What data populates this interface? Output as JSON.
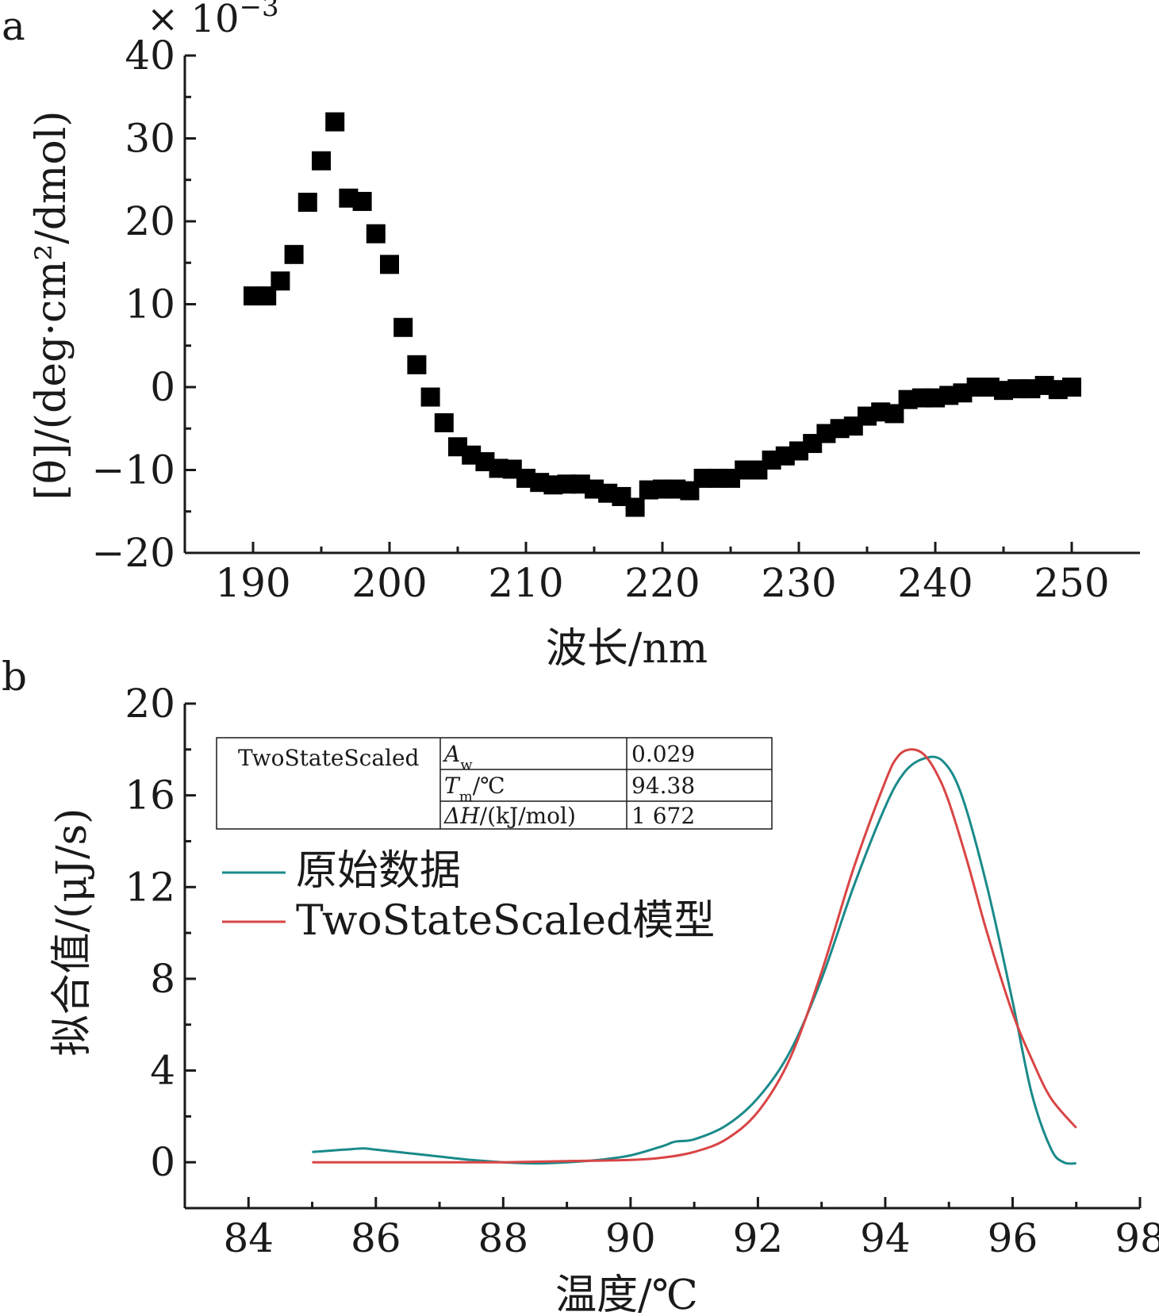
{
  "panels": [
    {
      "letter": "a",
      "multiplier_label": "× 10",
      "multiplier_exp": "−3",
      "chart_data": {
        "type": "scatter",
        "xlabel": "波长/nm",
        "ylabel": "[θ]/(deg·cm²/dmol)",
        "xlim": [
          185,
          255
        ],
        "ylim": [
          -20,
          40
        ],
        "xticks": [
          190,
          200,
          210,
          220,
          230,
          240,
          250
        ],
        "xtick_labels": [
          "190",
          "200",
          "210",
          "220",
          "230",
          "240",
          "250"
        ],
        "yticks": [
          -20,
          -10,
          0,
          10,
          20,
          30,
          40
        ],
        "ytick_labels": [
          "−20",
          "−10",
          "0",
          "10",
          "20",
          "30",
          "40"
        ],
        "marker": "square",
        "color": "#000000",
        "series": [
          {
            "x": [
              190,
              191,
              192,
              193,
              194,
              195,
              196,
              197,
              198,
              199,
              200,
              201,
              202,
              203,
              204,
              205,
              206,
              207,
              208,
              209,
              210,
              211,
              212,
              213,
              214,
              215,
              216,
              217,
              218,
              219,
              220,
              221,
              222,
              223,
              224,
              225,
              226,
              227,
              228,
              229,
              230,
              231,
              232,
              233,
              234,
              235,
              236,
              237,
              238,
              239,
              240,
              241,
              242,
              243,
              244,
              245,
              246,
              247,
              248,
              249,
              250
            ],
            "y": [
              11.0,
              11.0,
              12.8,
              16.0,
              22.3,
              27.3,
              32.0,
              22.8,
              22.4,
              18.5,
              14.8,
              7.2,
              2.7,
              -1.2,
              -4.3,
              -7.2,
              -8.2,
              -9.0,
              -9.8,
              -9.9,
              -11.0,
              -11.5,
              -11.8,
              -11.7,
              -11.7,
              -12.3,
              -12.8,
              -13.2,
              -14.5,
              -12.4,
              -12.3,
              -12.3,
              -12.5,
              -11.0,
              -11.0,
              -11.0,
              -10.0,
              -10.0,
              -8.8,
              -8.3,
              -7.7,
              -6.8,
              -5.6,
              -5.0,
              -4.7,
              -3.5,
              -3.0,
              -3.2,
              -1.5,
              -1.3,
              -1.3,
              -1.0,
              -0.7,
              0.0,
              0.0,
              -0.4,
              -0.2,
              -0.2,
              0.2,
              -0.3,
              0.0
            ]
          }
        ]
      }
    },
    {
      "letter": "b",
      "chart_data": {
        "type": "line",
        "xlabel": "温度/℃",
        "ylabel": "拟合值/(μJ/s)",
        "xlim": [
          83,
          98
        ],
        "ylim": [
          -2,
          20
        ],
        "xticks": [
          84,
          86,
          88,
          90,
          92,
          94,
          96,
          98
        ],
        "xtick_labels": [
          "84",
          "86",
          "88",
          "90",
          "92",
          "94",
          "96",
          "98"
        ],
        "yticks": [
          0,
          4,
          8,
          12,
          16,
          20
        ],
        "ytick_labels": [
          "0",
          "4",
          "8",
          "12",
          "16",
          "20"
        ],
        "series": [
          {
            "name": "原始数据",
            "color": "#1a8a8a",
            "x": [
              85,
              85.5,
              85.8,
              86,
              86.5,
              87,
              87.5,
              88,
              88.5,
              89,
              89.5,
              90,
              90.5,
              90.7,
              91,
              91.5,
              92,
              92.5,
              93,
              93.5,
              94,
              94.3,
              94.6,
              94.9,
              95.2,
              95.6,
              96,
              96.3,
              96.6,
              96.8,
              97
            ],
            "y": [
              0.45,
              0.55,
              0.6,
              0.55,
              0.4,
              0.25,
              0.1,
              0.0,
              -0.05,
              0.0,
              0.1,
              0.3,
              0.7,
              0.9,
              1.0,
              1.6,
              2.8,
              4.8,
              8.0,
              12.0,
              15.5,
              17.0,
              17.6,
              17.5,
              16.0,
              12.0,
              7.0,
              3.0,
              0.6,
              0.0,
              -0.05
            ]
          },
          {
            "name": "TwoStateScaled模型",
            "color": "#d94545",
            "x": [
              85,
              86,
              87,
              88,
              89,
              90,
              90.5,
              91,
              91.5,
              92,
              92.5,
              93,
              93.5,
              94,
              94.2,
              94.4,
              94.6,
              94.8,
              95,
              95.3,
              95.6,
              96,
              96.3,
              96.6,
              97
            ],
            "y": [
              0.0,
              0.0,
              0.0,
              0.0,
              0.05,
              0.1,
              0.2,
              0.45,
              1.0,
              2.2,
              4.5,
              8.3,
              12.8,
              16.6,
              17.7,
              18.0,
              17.8,
              17.0,
              15.7,
              13.0,
              10.0,
              6.5,
              4.5,
              2.8,
              1.5
            ]
          }
        ],
        "inset_table": {
          "model": "TwoStateScaled",
          "rows": [
            {
              "param_main": "A",
              "param_sub": "w",
              "param_rest": "",
              "value": "0.029"
            },
            {
              "param_main": "T",
              "param_sub": "m",
              "param_rest": "/℃",
              "value": "94.38"
            },
            {
              "param_main": "ΔH",
              "param_sub": "",
              "param_rest": "/(kJ/mol)",
              "value": "1 672"
            }
          ]
        }
      }
    }
  ]
}
